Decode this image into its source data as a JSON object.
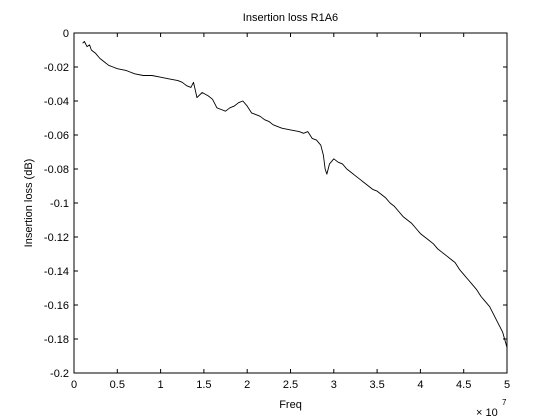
{
  "chart_data": {
    "type": "line",
    "title": "Insertion loss R1A6",
    "xlabel": "Freq",
    "ylabel": "Insertion loss (dB)",
    "x_exponent_label": "× 10",
    "x_exponent_power": "7",
    "xlim": [
      0,
      50000000
    ],
    "ylim": [
      -0.2,
      0
    ],
    "xticks": [
      0,
      5000000,
      10000000,
      15000000,
      20000000,
      25000000,
      30000000,
      35000000,
      40000000,
      45000000,
      50000000
    ],
    "xtick_labels": [
      "0",
      "0.5",
      "1",
      "1.5",
      "2",
      "2.5",
      "3",
      "3.5",
      "4",
      "4.5",
      "5"
    ],
    "yticks": [
      0,
      -0.02,
      -0.04,
      -0.06,
      -0.08,
      -0.1,
      -0.12,
      -0.14,
      -0.16,
      -0.18,
      -0.2
    ],
    "ytick_labels": [
      "0",
      "-0.02",
      "-0.04",
      "-0.06",
      "-0.08",
      "-0.1",
      "-0.12",
      "-0.14",
      "-0.16",
      "-0.18",
      "-0.2"
    ],
    "grid": false,
    "legend": "none",
    "series": [
      {
        "color": "#000000",
        "x": [
          1000000,
          1200000,
          1500000,
          1800000,
          2000000,
          2500000,
          3000000,
          3500000,
          4000000,
          4500000,
          5000000,
          6000000,
          7000000,
          8000000,
          9000000,
          10000000,
          11000000,
          12000000,
          12500000,
          13000000,
          13500000,
          13800000,
          14200000,
          14800000,
          15500000,
          16000000,
          16500000,
          17000000,
          17500000,
          18000000,
          18500000,
          19000000,
          19500000,
          20000000,
          20500000,
          21000000,
          21500000,
          22000000,
          22500000,
          23000000,
          24000000,
          25000000,
          26000000,
          26500000,
          27000000,
          27500000,
          28000000,
          28500000,
          28800000,
          29000000,
          29200000,
          29500000,
          30000000,
          30500000,
          31000000,
          31500000,
          32000000,
          32500000,
          33000000,
          33500000,
          34000000,
          34500000,
          35000000,
          35500000,
          36000000,
          36500000,
          37000000,
          37500000,
          38000000,
          38500000,
          39000000,
          39500000,
          40000000,
          40500000,
          41000000,
          41500000,
          42000000,
          42500000,
          43000000,
          43500000,
          44000000,
          44500000,
          45000000,
          45500000,
          46000000,
          46500000,
          47000000,
          47500000,
          48000000,
          48500000,
          49000000,
          49500000,
          50000000
        ],
        "y": [
          -0.006,
          -0.005,
          -0.008,
          -0.007,
          -0.01,
          -0.012,
          -0.015,
          -0.017,
          -0.019,
          -0.02,
          -0.021,
          -0.022,
          -0.024,
          -0.025,
          -0.025,
          -0.026,
          -0.027,
          -0.028,
          -0.029,
          -0.031,
          -0.032,
          -0.029,
          -0.038,
          -0.035,
          -0.037,
          -0.039,
          -0.044,
          -0.045,
          -0.046,
          -0.044,
          -0.043,
          -0.041,
          -0.04,
          -0.043,
          -0.047,
          -0.048,
          -0.049,
          -0.051,
          -0.052,
          -0.054,
          -0.056,
          -0.057,
          -0.058,
          -0.059,
          -0.058,
          -0.062,
          -0.063,
          -0.066,
          -0.072,
          -0.08,
          -0.083,
          -0.077,
          -0.074,
          -0.076,
          -0.077,
          -0.08,
          -0.082,
          -0.084,
          -0.086,
          -0.088,
          -0.09,
          -0.092,
          -0.093,
          -0.095,
          -0.097,
          -0.1,
          -0.102,
          -0.105,
          -0.108,
          -0.11,
          -0.112,
          -0.115,
          -0.118,
          -0.12,
          -0.122,
          -0.124,
          -0.127,
          -0.129,
          -0.131,
          -0.133,
          -0.135,
          -0.139,
          -0.142,
          -0.145,
          -0.148,
          -0.151,
          -0.155,
          -0.158,
          -0.161,
          -0.166,
          -0.171,
          -0.176,
          -0.185
        ]
      }
    ]
  }
}
